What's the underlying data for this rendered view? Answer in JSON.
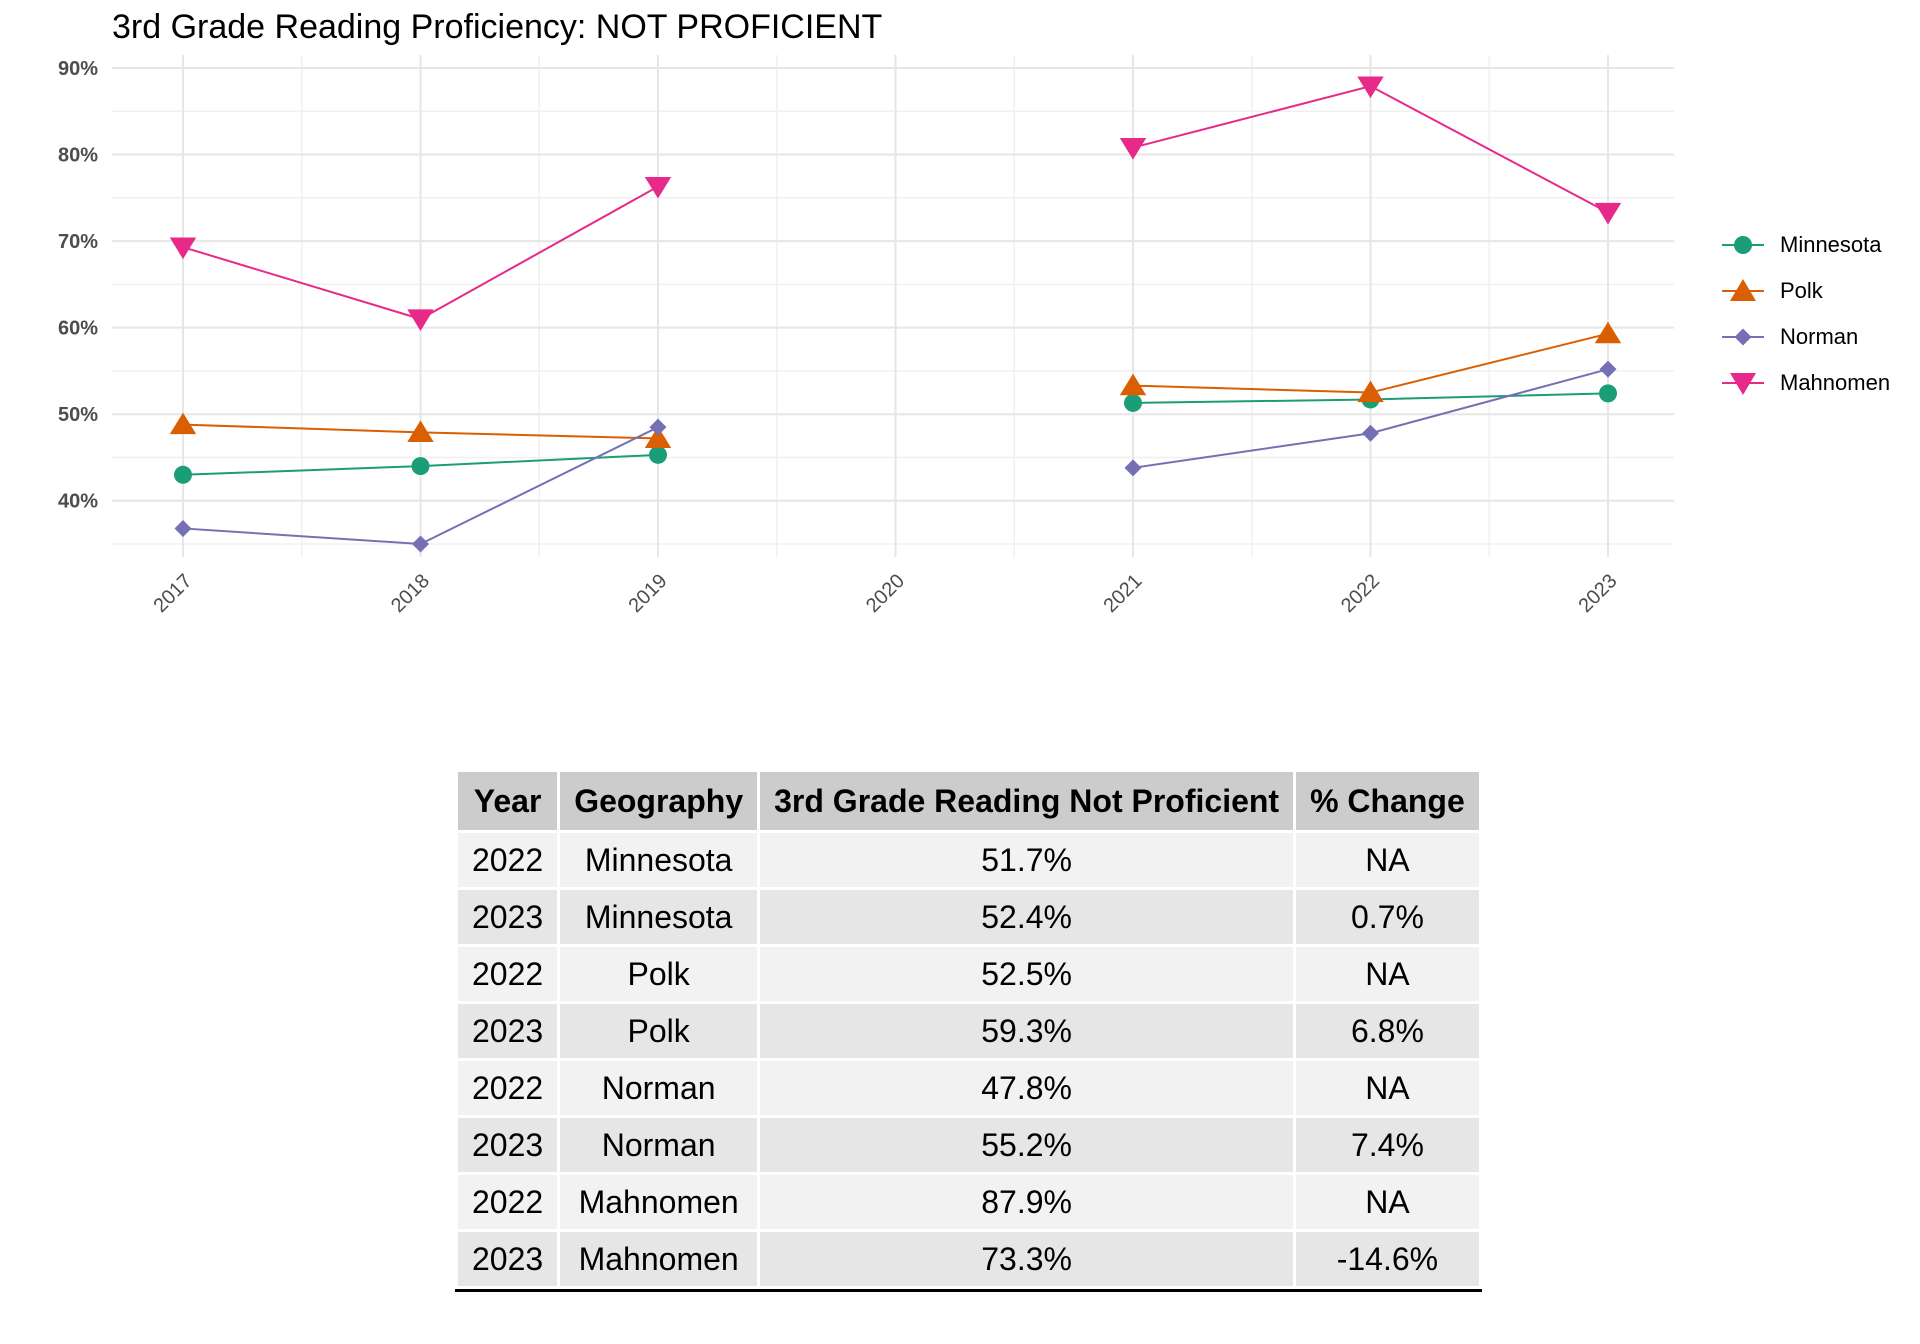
{
  "chart_data": {
    "type": "line",
    "title": "3rd Grade Reading Proficiency: NOT PROFICIENT",
    "x_categories": [
      "2017",
      "2018",
      "2019",
      "2020",
      "2021",
      "2022",
      "2023"
    ],
    "y_ticks": [
      "40%",
      "50%",
      "60%",
      "70%",
      "80%",
      "90%"
    ],
    "ylim": [
      33.5,
      91.5
    ],
    "grid": true,
    "legend_position": "right",
    "series": [
      {
        "name": "Minnesota",
        "color": "#1b9e77",
        "marker": "circle",
        "values": [
          43.0,
          44.0,
          45.3,
          null,
          51.3,
          51.7,
          52.4
        ]
      },
      {
        "name": "Polk",
        "color": "#d95f02",
        "marker": "triangle-up",
        "values": [
          48.8,
          47.9,
          47.2,
          null,
          53.3,
          52.5,
          59.3
        ]
      },
      {
        "name": "Norman",
        "color": "#7570b3",
        "marker": "diamond",
        "values": [
          36.8,
          35.0,
          48.5,
          null,
          43.8,
          47.8,
          55.2
        ]
      },
      {
        "name": "Mahnomen",
        "color": "#e7298a",
        "marker": "triangle-down",
        "values": [
          69.3,
          61.0,
          76.3,
          null,
          80.8,
          87.9,
          73.3
        ]
      }
    ]
  },
  "table": {
    "headers": [
      "Year",
      "Geography",
      "3rd Grade Reading Not Proficient",
      "% Change"
    ],
    "rows": [
      [
        "2022",
        "Minnesota",
        "51.7%",
        "NA"
      ],
      [
        "2023",
        "Minnesota",
        "52.4%",
        "0.7%"
      ],
      [
        "2022",
        "Polk",
        "52.5%",
        "NA"
      ],
      [
        "2023",
        "Polk",
        "59.3%",
        "6.8%"
      ],
      [
        "2022",
        "Norman",
        "47.8%",
        "NA"
      ],
      [
        "2023",
        "Norman",
        "55.2%",
        "7.4%"
      ],
      [
        "2022",
        "Mahnomen",
        "87.9%",
        "NA"
      ],
      [
        "2023",
        "Mahnomen",
        "73.3%",
        "-14.6%"
      ]
    ]
  }
}
